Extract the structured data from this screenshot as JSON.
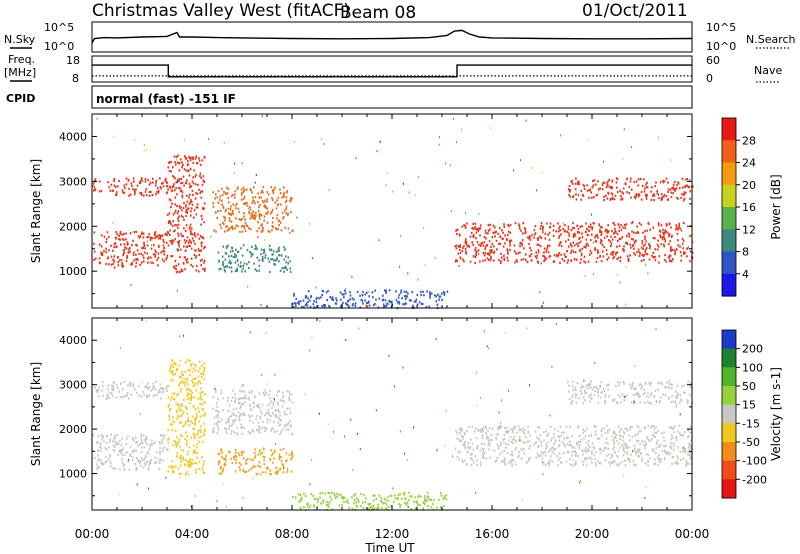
{
  "header": {
    "station": "Christmas Valley West (fitACF)",
    "beam": "Beam 08",
    "date": "01/Oct/2011"
  },
  "status_panel": {
    "nsky_label": "N.Sky",
    "nsearch_label": "N.Search",
    "freq_label_line1": "Freq.",
    "freq_label_line2": "[MHz]",
    "nave_label": "Nave",
    "cpid_label": "CPID",
    "cpid_text": "normal (fast) -151 IF",
    "noise_ticks": [
      "10^5",
      "10^0"
    ],
    "freq_ticks": [
      "18",
      "8"
    ],
    "nave_ticks": [
      "60",
      "0"
    ],
    "noise_trace": [
      [
        0.0,
        0.3
      ],
      [
        0.1,
        0.45
      ],
      [
        0.5,
        0.48
      ],
      [
        1.0,
        0.47
      ],
      [
        2.0,
        0.5
      ],
      [
        3.0,
        0.52
      ],
      [
        3.4,
        0.65
      ],
      [
        3.5,
        0.5
      ],
      [
        4.0,
        0.5
      ],
      [
        5.0,
        0.48
      ],
      [
        6.0,
        0.47
      ],
      [
        8.0,
        0.45
      ],
      [
        10.0,
        0.44
      ],
      [
        12.0,
        0.45
      ],
      [
        13.5,
        0.48
      ],
      [
        14.2,
        0.55
      ],
      [
        14.5,
        0.7
      ],
      [
        14.8,
        0.72
      ],
      [
        15.1,
        0.6
      ],
      [
        15.5,
        0.5
      ],
      [
        16.0,
        0.47
      ],
      [
        18.0,
        0.45
      ],
      [
        20.0,
        0.44
      ],
      [
        22.0,
        0.44
      ],
      [
        24.0,
        0.45
      ]
    ],
    "freq_trace": [
      [
        0.0,
        14.5
      ],
      [
        3.05,
        14.5
      ],
      [
        3.05,
        10.0
      ],
      [
        14.6,
        10.0
      ],
      [
        14.6,
        14.5
      ],
      [
        24.0,
        14.5
      ]
    ],
    "nave_trace": [
      [
        0.0,
        14
      ],
      [
        24.0,
        14
      ]
    ]
  },
  "chart_data": [
    {
      "type": "heatmap",
      "name": "power-panel",
      "xlabel": "",
      "ylabel": "Slant Range [km]",
      "xlim": [
        0,
        24
      ],
      "ylim": [
        180,
        4500
      ],
      "yticks": [
        1000,
        2000,
        3000,
        4000
      ],
      "colorbar": {
        "label": "Power [dB]",
        "ticks": [
          "4",
          "8",
          "12",
          "16",
          "20",
          "24",
          "28"
        ],
        "colors": [
          "#1a1ae6",
          "#2f55c6",
          "#3c8a7e",
          "#5ab34a",
          "#c8d21e",
          "#f29c12",
          "#f0601a",
          "#e61a14"
        ]
      },
      "echo_regions": [
        {
          "t0": 0.0,
          "t1": 3.0,
          "r_lo": 1100,
          "r_hi": 1900,
          "color": "#e8321a"
        },
        {
          "t0": 0.0,
          "t1": 3.0,
          "r_lo": 2700,
          "r_hi": 3100,
          "color": "#e8321a"
        },
        {
          "t0": 3.0,
          "t1": 4.5,
          "r_lo": 1000,
          "r_hi": 3600,
          "color": "#e8321a"
        },
        {
          "t0": 4.8,
          "t1": 8.0,
          "r_lo": 1900,
          "r_hi": 2900,
          "color": "#e86a1a"
        },
        {
          "t0": 5.0,
          "t1": 8.0,
          "r_lo": 1000,
          "r_hi": 1600,
          "color": "#3c8a7e"
        },
        {
          "t0": 8.0,
          "t1": 14.2,
          "r_lo": 200,
          "r_hi": 600,
          "color": "#2f55c6"
        },
        {
          "t0": 14.5,
          "t1": 24.0,
          "r_lo": 1200,
          "r_hi": 2100,
          "color": "#e8321a"
        },
        {
          "t0": 19.0,
          "t1": 24.0,
          "r_lo": 2600,
          "r_hi": 3100,
          "color": "#e8321a"
        }
      ]
    },
    {
      "type": "heatmap",
      "name": "velocity-panel",
      "xlabel": "Time UT",
      "ylabel": "Slant Range [km]",
      "xlim": [
        0,
        24
      ],
      "ylim": [
        180,
        4500
      ],
      "yticks": [
        1000,
        2000,
        3000,
        4000
      ],
      "xticks": [
        "00:00",
        "04:00",
        "08:00",
        "12:00",
        "16:00",
        "20:00",
        "00:00"
      ],
      "colorbar": {
        "label": "Velocity [m s-1]",
        "ticks": [
          "200",
          "100",
          "50",
          "15",
          "-15",
          "-50",
          "-100",
          "-200"
        ],
        "colors": [
          "#1a3cc8",
          "#1e8232",
          "#50b428",
          "#96d23c",
          "#c8c8c3",
          "#f0c81e",
          "#f08c1e",
          "#f04b19",
          "#e61414"
        ]
      },
      "echo_regions": [
        {
          "t0": 0.0,
          "t1": 3.0,
          "r_lo": 1100,
          "r_hi": 1900,
          "color": "#c8c8c3"
        },
        {
          "t0": 0.0,
          "t1": 3.0,
          "r_lo": 2700,
          "r_hi": 3100,
          "color": "#c8c8c3"
        },
        {
          "t0": 3.0,
          "t1": 4.5,
          "r_lo": 1000,
          "r_hi": 3600,
          "color": "#f0c81e"
        },
        {
          "t0": 4.8,
          "t1": 8.0,
          "r_lo": 1900,
          "r_hi": 2900,
          "color": "#c8c8c3"
        },
        {
          "t0": 5.0,
          "t1": 8.0,
          "r_lo": 1000,
          "r_hi": 1600,
          "color": "#f0a31e"
        },
        {
          "t0": 8.0,
          "t1": 14.2,
          "r_lo": 200,
          "r_hi": 600,
          "color": "#96d23c"
        },
        {
          "t0": 14.5,
          "t1": 24.0,
          "r_lo": 1200,
          "r_hi": 2100,
          "color": "#c8c8c3"
        },
        {
          "t0": 19.0,
          "t1": 24.0,
          "r_lo": 2600,
          "r_hi": 3100,
          "color": "#c8c8c3"
        }
      ]
    }
  ]
}
